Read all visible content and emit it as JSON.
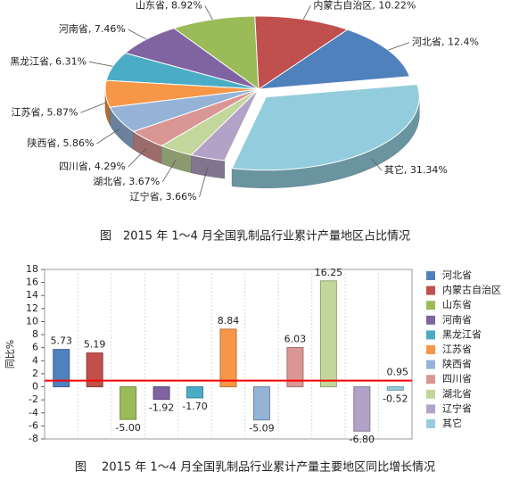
{
  "chart_data": [
    {
      "type": "pie",
      "caption": "图　2015 年 1～4 月全国乳制品行业累计产量地区占比情况",
      "values": [
        12.4,
        10.22,
        8.92,
        7.46,
        6.31,
        5.87,
        5.86,
        4.29,
        3.67,
        3.66,
        31.34
      ],
      "value_labels": [
        "河北省, 12.4%",
        "内蒙古自治区, 10.22%",
        "山东省, 8.92%",
        "河南省, 7.46%",
        "黑龙江省, 6.31%",
        "江苏省, 5.87%",
        "陕西省, 5.86%",
        "四川省, 4.29%",
        "湖北省, 3.67%",
        "辽宁省, 3.66%",
        "其它, 31.34%"
      ],
      "colors": [
        "#4f81bd",
        "#c0504d",
        "#9bbb59",
        "#8064a2",
        "#4bacc6",
        "#f79646",
        "#95b3d7",
        "#d99694",
        "#c3d69b",
        "#b3a2c7",
        "#93cddd"
      ]
    },
    {
      "type": "bar",
      "caption": "图　 2015 年 1～4 月全国乳制品行业累计产量主要地区同比增长情况",
      "y_label": "同比%",
      "categories": [
        "河北省",
        "内蒙古自治区",
        "山东省",
        "河南省",
        "黑龙江省",
        "江苏省",
        "陕西省",
        "四川省",
        "湖北省",
        "辽宁省",
        "其它"
      ],
      "values": [
        5.73,
        5.19,
        -5.0,
        -1.92,
        -1.7,
        8.84,
        -5.09,
        6.03,
        16.25,
        -6.8,
        -0.52
      ],
      "value_labels": [
        "5.73",
        "5.19",
        "-5.00",
        "-1.92",
        "-1.70",
        "8.84",
        "-5.09",
        "6.03",
        "16.25",
        "-6.80",
        "-0.52"
      ],
      "colors": [
        "#4f81bd",
        "#c0504d",
        "#9bbb59",
        "#8064a2",
        "#4bacc6",
        "#f79646",
        "#95b3d7",
        "#d99694",
        "#c3d69b",
        "#b3a2c7",
        "#93cddd"
      ],
      "reference_line": {
        "value": 0.95,
        "color": "#ff0000"
      },
      "ylim": [
        -8,
        18
      ],
      "yticks": [
        -8,
        -6,
        -4,
        -2,
        0,
        2,
        4,
        6,
        8,
        10,
        12,
        14,
        16,
        18
      ],
      "legend": "right"
    }
  ]
}
